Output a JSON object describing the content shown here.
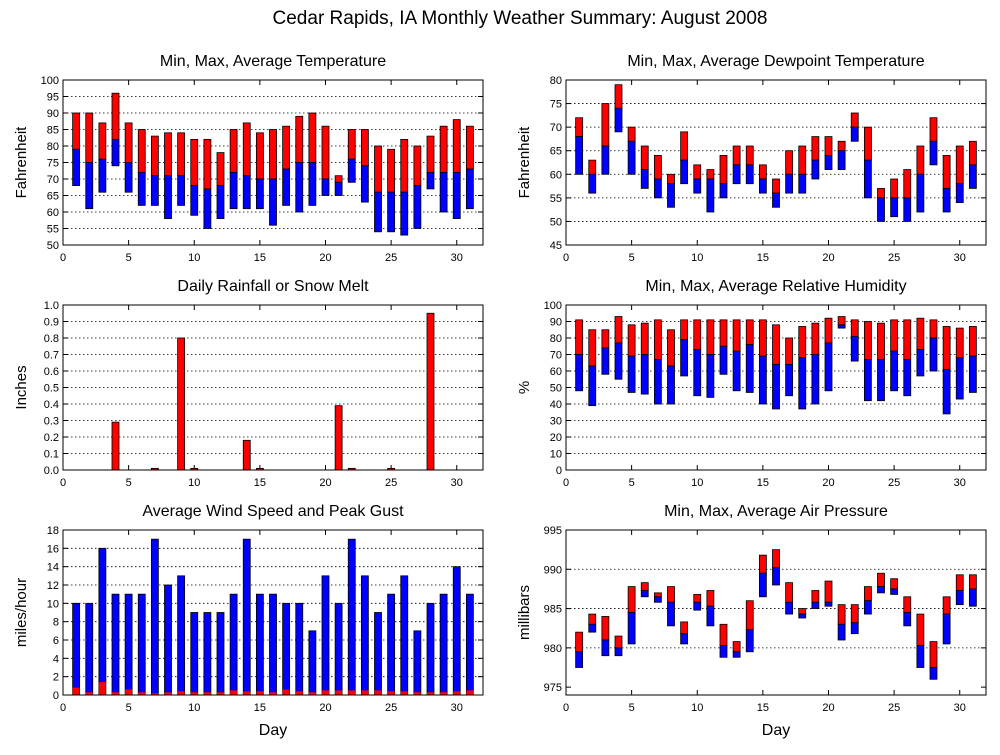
{
  "page": {
    "title": "Cedar Rapids, IA Monthly Weather Summary: August 2008",
    "x_axis_label": "Day"
  },
  "colors": {
    "upper": "#ff0000",
    "lower": "#0000ff",
    "grid": "#000000"
  },
  "chart_data": [
    {
      "id": "temp",
      "type": "bar",
      "style": "floating-minmax-avg",
      "title": "Min, Max, Average Temperature",
      "xlabel": "",
      "ylabel": "Fahrenheit",
      "xlim": [
        0,
        32
      ],
      "xticks": [
        0,
        5,
        10,
        15,
        20,
        25,
        30
      ],
      "ylim": [
        50,
        100
      ],
      "yticks": [
        50,
        55,
        60,
        65,
        70,
        75,
        80,
        85,
        90,
        95,
        100
      ],
      "grid": true,
      "x": [
        1,
        2,
        3,
        4,
        5,
        6,
        7,
        8,
        9,
        10,
        11,
        12,
        13,
        14,
        15,
        16,
        17,
        18,
        19,
        20,
        21,
        22,
        23,
        24,
        25,
        26,
        27,
        28,
        29,
        30,
        31
      ],
      "min": [
        68,
        61,
        66,
        74,
        66,
        62,
        62,
        58,
        62,
        59,
        55,
        58,
        61,
        61,
        61,
        56,
        62,
        60,
        62,
        65,
        65,
        69,
        63,
        54,
        54,
        53,
        55,
        67,
        60,
        58,
        61
      ],
      "avg": [
        79,
        75,
        76,
        82,
        75,
        72,
        71,
        71,
        71,
        68,
        67,
        68,
        72,
        71,
        70,
        70,
        73,
        75,
        75,
        70,
        69,
        76,
        74,
        66,
        66,
        66,
        68,
        72,
        72,
        72,
        73
      ],
      "max": [
        90,
        90,
        87,
        96,
        87,
        85,
        83,
        84,
        84,
        82,
        82,
        78,
        85,
        87,
        84,
        85,
        86,
        89,
        90,
        86,
        71,
        85,
        85,
        80,
        79,
        82,
        80,
        83,
        86,
        88,
        86
      ]
    },
    {
      "id": "dewpoint",
      "type": "bar",
      "style": "floating-minmax-avg",
      "title": "Min, Max, Average Dewpoint Temperature",
      "xlabel": "",
      "ylabel": "Fahrenheit",
      "xlim": [
        0,
        32
      ],
      "xticks": [
        0,
        5,
        10,
        15,
        20,
        25,
        30
      ],
      "ylim": [
        45,
        80
      ],
      "yticks": [
        45,
        50,
        55,
        60,
        65,
        70,
        75,
        80
      ],
      "grid": true,
      "x": [
        1,
        2,
        3,
        4,
        5,
        6,
        7,
        8,
        9,
        10,
        11,
        12,
        13,
        14,
        15,
        16,
        17,
        18,
        19,
        20,
        21,
        22,
        23,
        24,
        25,
        26,
        27,
        28,
        29,
        30,
        31
      ],
      "min": [
        60,
        56,
        60,
        69,
        60,
        57,
        55,
        53,
        58,
        56,
        52,
        55,
        58,
        58,
        56,
        53,
        56,
        56,
        59,
        61,
        61,
        67,
        55,
        50,
        51,
        50,
        52,
        62,
        52,
        54,
        57
      ],
      "avg": [
        68,
        60,
        66,
        74,
        67,
        61,
        59,
        58,
        63,
        59,
        59,
        58,
        62,
        62,
        59,
        56,
        60,
        60,
        63,
        64,
        65,
        70,
        63,
        55,
        55,
        55,
        60,
        67,
        57,
        58,
        62
      ],
      "max": [
        72,
        63,
        75,
        79,
        70,
        66,
        64,
        60,
        69,
        62,
        61,
        64,
        66,
        66,
        62,
        59,
        65,
        66,
        68,
        68,
        67,
        73,
        70,
        57,
        59,
        61,
        66,
        72,
        64,
        66,
        67
      ]
    },
    {
      "id": "rain",
      "type": "bar",
      "style": "single",
      "title": "Daily Rainfall or Snow Melt",
      "xlabel": "",
      "ylabel": "Inches",
      "xlim": [
        0,
        32
      ],
      "xticks": [
        0,
        5,
        10,
        15,
        20,
        25,
        30
      ],
      "ylim": [
        0,
        1.0
      ],
      "yticks": [
        0.0,
        0.1,
        0.2,
        0.3,
        0.4,
        0.5,
        0.6,
        0.7,
        0.8,
        0.9,
        1.0
      ],
      "tick_decimals": 1,
      "grid": true,
      "x": [
        1,
        2,
        3,
        4,
        5,
        6,
        7,
        8,
        9,
        10,
        11,
        12,
        13,
        14,
        15,
        16,
        17,
        18,
        19,
        20,
        21,
        22,
        23,
        24,
        25,
        26,
        27,
        28,
        29,
        30,
        31
      ],
      "values": [
        0,
        0,
        0,
        0.29,
        0,
        0,
        0.01,
        0,
        0.8,
        0.01,
        0,
        0,
        0,
        0.18,
        0.01,
        0,
        0,
        0,
        0,
        0,
        0.39,
        0.01,
        0,
        0,
        0.01,
        0,
        0,
        0.95,
        0,
        0,
        0
      ]
    },
    {
      "id": "humidity",
      "type": "bar",
      "style": "floating-minmax-avg",
      "title": "Min, Max, Average Relative Humidity",
      "xlabel": "",
      "ylabel": "%",
      "xlim": [
        0,
        32
      ],
      "xticks": [
        0,
        5,
        10,
        15,
        20,
        25,
        30
      ],
      "ylim": [
        0,
        100
      ],
      "yticks": [
        0,
        10,
        20,
        30,
        40,
        50,
        60,
        70,
        80,
        90,
        100
      ],
      "grid": true,
      "x": [
        1,
        2,
        3,
        4,
        5,
        6,
        7,
        8,
        9,
        10,
        11,
        12,
        13,
        14,
        15,
        16,
        17,
        18,
        19,
        20,
        21,
        22,
        23,
        24,
        25,
        26,
        27,
        28,
        29,
        30,
        31
      ],
      "min": [
        48,
        39,
        58,
        55,
        47,
        46,
        40,
        40,
        57,
        45,
        44,
        58,
        48,
        47,
        40,
        37,
        45,
        37,
        40,
        48,
        86,
        66,
        42,
        42,
        48,
        45,
        57,
        60,
        34,
        43,
        47
      ],
      "avg": [
        70,
        63,
        74,
        77,
        69,
        70,
        67,
        63,
        79,
        73,
        70,
        75,
        72,
        76,
        69,
        64,
        64,
        68,
        70,
        77,
        88,
        81,
        67,
        67,
        72,
        67,
        73,
        80,
        61,
        68,
        69
      ],
      "max": [
        91,
        85,
        85,
        93,
        88,
        89,
        91,
        85,
        91,
        91,
        91,
        91,
        91,
        91,
        91,
        88,
        80,
        87,
        89,
        92,
        93,
        91,
        90,
        89,
        91,
        91,
        92,
        91,
        87,
        86,
        87
      ]
    },
    {
      "id": "wind",
      "type": "bar",
      "style": "gust-avg",
      "title": "Average Wind Speed and Peak Gust",
      "xlabel": "Day",
      "ylabel": "miles/hour",
      "xlim": [
        0,
        32
      ],
      "xticks": [
        0,
        5,
        10,
        15,
        20,
        25,
        30
      ],
      "ylim": [
        0,
        18
      ],
      "yticks": [
        0,
        2,
        4,
        6,
        8,
        10,
        12,
        14,
        16,
        18
      ],
      "grid": true,
      "x": [
        1,
        2,
        3,
        4,
        5,
        6,
        7,
        8,
        9,
        10,
        11,
        12,
        13,
        14,
        15,
        16,
        17,
        18,
        19,
        20,
        21,
        22,
        23,
        24,
        25,
        26,
        27,
        28,
        29,
        30,
        31
      ],
      "gust": [
        10,
        10,
        16,
        11,
        11,
        11,
        17,
        12,
        13,
        9,
        9,
        9,
        11,
        17,
        11,
        11,
        10,
        10,
        7,
        13,
        10,
        17,
        13,
        9,
        11,
        13,
        7,
        10,
        11,
        14,
        11
      ],
      "avg": [
        0.8,
        0.3,
        1.4,
        0.3,
        0.6,
        0.3,
        0.2,
        0.3,
        0.4,
        0.3,
        0.3,
        0.3,
        0.5,
        0.4,
        0.4,
        0.3,
        0.6,
        0.4,
        0.3,
        0.5,
        0.5,
        0.5,
        0.5,
        0.5,
        0.4,
        0.4,
        0.3,
        0.3,
        0.3,
        0.4,
        0.5
      ]
    },
    {
      "id": "pressure",
      "type": "bar",
      "style": "floating-minmax-avg",
      "title": "Min, Max, Average Air Pressure",
      "xlabel": "Day",
      "ylabel": "millibars",
      "xlim": [
        0,
        32
      ],
      "xticks": [
        0,
        5,
        10,
        15,
        20,
        25,
        30
      ],
      "ylim": [
        974,
        995
      ],
      "yticks": [
        975,
        980,
        985,
        990,
        995
      ],
      "grid": true,
      "x": [
        1,
        2,
        3,
        4,
        5,
        6,
        7,
        8,
        9,
        10,
        11,
        12,
        13,
        14,
        15,
        16,
        17,
        18,
        19,
        20,
        21,
        22,
        23,
        24,
        25,
        26,
        27,
        28,
        29,
        30,
        31
      ],
      "min": [
        977.5,
        982,
        979,
        979,
        980.5,
        986.5,
        985.8,
        982.8,
        980.5,
        984.8,
        982.8,
        978.8,
        978.8,
        979.5,
        986.5,
        988,
        984.3,
        983.8,
        985,
        985.3,
        981,
        981.8,
        984.3,
        987,
        986.8,
        982.8,
        977.5,
        976,
        980.5,
        985.5,
        985.3
      ],
      "avg": [
        979.5,
        983,
        981,
        980,
        984.5,
        987.3,
        986.5,
        985.8,
        981.8,
        985.8,
        985.3,
        980.3,
        979.5,
        982.3,
        989.5,
        990.2,
        985.8,
        984.3,
        985.8,
        985.8,
        983,
        983.2,
        986,
        987.8,
        987.5,
        984.5,
        980.3,
        977.5,
        984.3,
        987.3,
        987.5
      ],
      "max": [
        982,
        984.3,
        984,
        981.5,
        987.8,
        988.3,
        987,
        987.8,
        983.3,
        986.8,
        987.3,
        983,
        980.8,
        986,
        991.8,
        992.5,
        988.3,
        985,
        987.3,
        988.5,
        985.5,
        985.5,
        987.8,
        989.5,
        988.8,
        986.5,
        984.3,
        980.8,
        986.5,
        989.3,
        989.3
      ]
    }
  ]
}
